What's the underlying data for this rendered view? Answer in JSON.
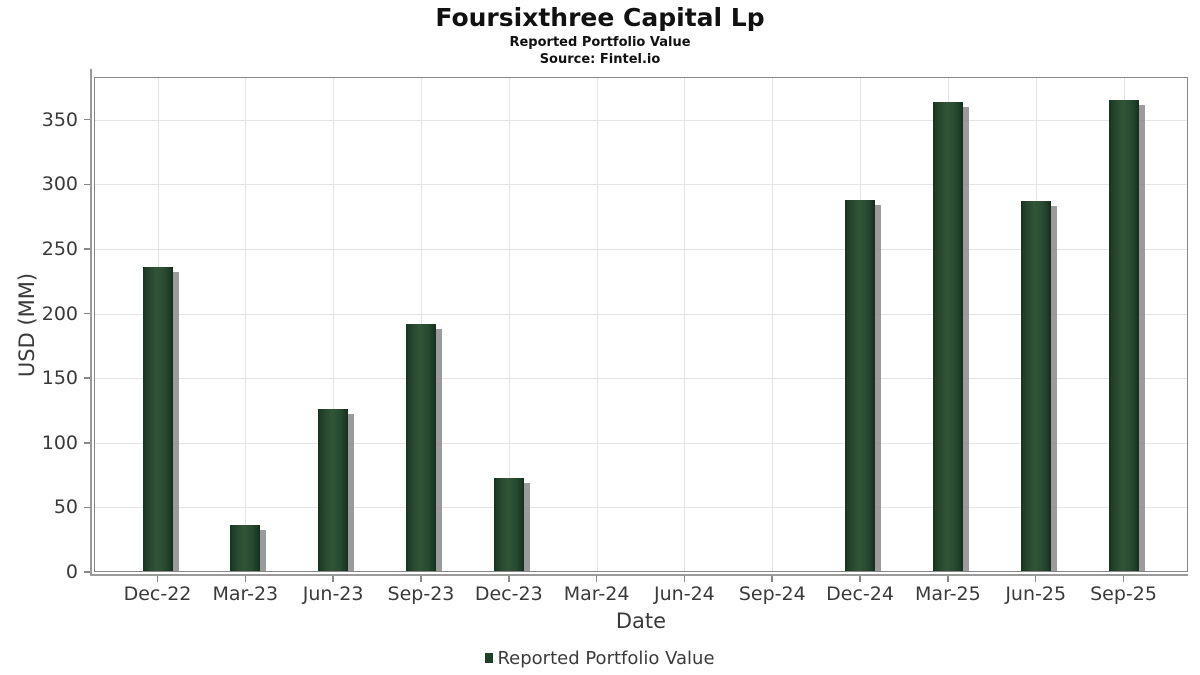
{
  "chart_data": {
    "type": "bar",
    "title": "Foursixthree Capital Lp",
    "subtitle": "Reported Portfolio Value",
    "source": "Source: Fintel.io",
    "xlabel": "Date",
    "ylabel": "USD (MM)",
    "categories": [
      "Dec-22",
      "Mar-23",
      "Jun-23",
      "Sep-23",
      "Dec-23",
      "Mar-24",
      "Jun-24",
      "Sep-24",
      "Dec-24",
      "Mar-25",
      "Jun-25",
      "Sep-25"
    ],
    "series": [
      {
        "name": "Reported Portfolio Value",
        "values": [
          236,
          36,
          126,
          192,
          73,
          0,
          0,
          0,
          288,
          364,
          287,
          365
        ]
      }
    ],
    "yticks": [
      0,
      50,
      100,
      150,
      200,
      250,
      300,
      350
    ],
    "ylim": [
      0,
      383
    ],
    "grid": true,
    "legend_position": "bottom",
    "colors": {
      "bar_mid": "#2e5135",
      "bar_edge": "#17311e",
      "bar_shadow": "#9b9b9b",
      "legend_marker": "#1e4127",
      "gridline": "#e4e4e4",
      "frame": "#878787",
      "tick_text": "#3a3a3a",
      "title_text": "#111111"
    }
  }
}
